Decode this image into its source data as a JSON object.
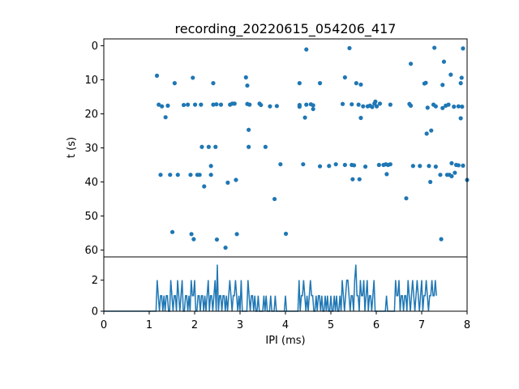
{
  "figure": {
    "title": "recording_20220615_054206_417"
  },
  "chart_data": [
    {
      "type": "scatter",
      "xlabel": "",
      "ylabel": "t (s)",
      "xlim": [
        0,
        8
      ],
      "ylim": [
        62,
        -2
      ],
      "y_inverted": true,
      "yticks": [
        0,
        10,
        20,
        30,
        40,
        50,
        60
      ],
      "color": "#1f77b4",
      "points": [
        [
          1.17,
          8.8
        ],
        [
          1.21,
          17.3
        ],
        [
          1.28,
          17.8
        ],
        [
          1.25,
          37.9
        ],
        [
          1.36,
          21.0
        ],
        [
          1.41,
          17.6
        ],
        [
          1.46,
          37.9
        ],
        [
          1.51,
          54.7
        ],
        [
          1.56,
          11.0
        ],
        [
          1.63,
          37.9
        ],
        [
          1.76,
          17.4
        ],
        [
          1.85,
          17.3
        ],
        [
          1.91,
          37.9
        ],
        [
          1.93,
          55.3
        ],
        [
          1.96,
          9.4
        ],
        [
          1.98,
          56.8
        ],
        [
          2.01,
          17.3
        ],
        [
          2.06,
          37.9
        ],
        [
          2.11,
          37.9
        ],
        [
          2.14,
          17.3
        ],
        [
          2.16,
          29.7
        ],
        [
          2.21,
          41.3
        ],
        [
          2.31,
          29.7
        ],
        [
          2.36,
          35.3
        ],
        [
          2.36,
          37.9
        ],
        [
          2.41,
          11.0
        ],
        [
          2.41,
          17.3
        ],
        [
          2.46,
          29.7
        ],
        [
          2.48,
          17.2
        ],
        [
          2.49,
          56.9
        ],
        [
          2.58,
          17.3
        ],
        [
          2.68,
          59.3
        ],
        [
          2.73,
          40.2
        ],
        [
          2.78,
          17.3
        ],
        [
          2.83,
          17.0
        ],
        [
          2.88,
          17.0
        ],
        [
          2.91,
          39.4
        ],
        [
          2.93,
          55.3
        ],
        [
          3.13,
          9.3
        ],
        [
          3.16,
          11.7
        ],
        [
          3.16,
          17.1
        ],
        [
          3.19,
          24.7
        ],
        [
          3.21,
          17.3
        ],
        [
          3.19,
          29.7
        ],
        [
          3.43,
          17.0
        ],
        [
          3.46,
          17.4
        ],
        [
          3.56,
          29.7
        ],
        [
          3.66,
          17.8
        ],
        [
          3.76,
          45.0
        ],
        [
          3.81,
          17.7
        ],
        [
          3.89,
          34.8
        ],
        [
          4.01,
          55.2
        ],
        [
          4.31,
          11.0
        ],
        [
          4.31,
          17.9
        ],
        [
          4.31,
          17.4
        ],
        [
          4.39,
          34.8
        ],
        [
          4.46,
          1.1
        ],
        [
          4.43,
          21.1
        ],
        [
          4.46,
          17.3
        ],
        [
          4.56,
          17.2
        ],
        [
          4.61,
          18.6
        ],
        [
          4.61,
          17.5
        ],
        [
          4.76,
          11.0
        ],
        [
          4.76,
          35.4
        ],
        [
          4.96,
          35.3
        ],
        [
          5.11,
          34.8
        ],
        [
          5.31,
          9.3
        ],
        [
          5.26,
          17.1
        ],
        [
          5.31,
          35.0
        ],
        [
          5.41,
          0.7
        ],
        [
          5.46,
          17.2
        ],
        [
          5.46,
          35.0
        ],
        [
          5.51,
          35.1
        ],
        [
          5.48,
          39.2
        ],
        [
          5.56,
          11.0
        ],
        [
          5.61,
          17.3
        ],
        [
          5.63,
          39.2
        ],
        [
          5.66,
          11.4
        ],
        [
          5.66,
          21.2
        ],
        [
          5.71,
          17.8
        ],
        [
          5.76,
          35.5
        ],
        [
          5.81,
          17.8
        ],
        [
          5.86,
          17.6
        ],
        [
          5.91,
          18.0
        ],
        [
          5.96,
          17.0
        ],
        [
          5.98,
          16.4
        ],
        [
          6.01,
          17.8
        ],
        [
          6.06,
          35.0
        ],
        [
          6.08,
          17.0
        ],
        [
          6.16,
          35.0
        ],
        [
          6.21,
          34.8
        ],
        [
          6.26,
          35.0
        ],
        [
          6.23,
          37.7
        ],
        [
          6.31,
          17.3
        ],
        [
          6.31,
          34.8
        ],
        [
          6.66,
          44.8
        ],
        [
          6.73,
          17.1
        ],
        [
          6.76,
          5.3
        ],
        [
          6.76,
          17.6
        ],
        [
          6.81,
          35.3
        ],
        [
          6.96,
          35.3
        ],
        [
          7.06,
          11.1
        ],
        [
          7.09,
          10.9
        ],
        [
          7.11,
          25.8
        ],
        [
          7.13,
          18.2
        ],
        [
          7.16,
          35.3
        ],
        [
          7.19,
          40.0
        ],
        [
          7.21,
          24.9
        ],
        [
          7.26,
          17.3
        ],
        [
          7.31,
          17.8
        ],
        [
          7.31,
          35.5
        ],
        [
          7.28,
          0.6
        ],
        [
          7.41,
          37.9
        ],
        [
          7.43,
          56.8
        ],
        [
          7.46,
          11.5
        ],
        [
          7.46,
          18.3
        ],
        [
          7.49,
          4.7
        ],
        [
          7.53,
          17.6
        ],
        [
          7.56,
          37.9
        ],
        [
          7.59,
          17.3
        ],
        [
          7.61,
          37.9
        ],
        [
          7.66,
          34.5
        ],
        [
          7.64,
          8.5
        ],
        [
          7.66,
          38.3
        ],
        [
          7.71,
          17.9
        ],
        [
          7.73,
          37.3
        ],
        [
          7.76,
          35.0
        ],
        [
          7.81,
          17.8
        ],
        [
          7.81,
          35.1
        ],
        [
          7.86,
          11.0
        ],
        [
          7.86,
          21.3
        ],
        [
          7.88,
          9.4
        ],
        [
          7.89,
          17.9
        ],
        [
          7.91,
          35.2
        ],
        [
          7.91,
          0.8
        ],
        [
          8.0,
          39.4
        ]
      ]
    },
    {
      "type": "line",
      "xlabel": "IPI (ms)",
      "ylabel": "",
      "xlim": [
        0,
        8
      ],
      "ylim": [
        0,
        3.5
      ],
      "xticks": [
        0,
        1,
        2,
        3,
        4,
        5,
        6,
        7,
        8
      ],
      "yticks": [
        0,
        2
      ],
      "color": "#1f77b4",
      "series": [
        {
          "bin_start": 0,
          "bin_width": 0.025,
          "values": [
            0,
            0,
            0,
            0,
            0,
            0,
            0,
            0,
            0,
            0,
            0,
            0,
            0,
            0,
            0,
            0,
            0,
            0,
            0,
            0,
            0,
            0,
            0,
            0,
            0,
            0,
            0,
            0,
            0,
            0,
            0,
            0,
            0,
            0,
            0,
            0,
            0,
            0,
            0,
            0,
            0,
            0,
            0,
            0,
            0,
            0,
            0,
            2,
            1,
            0,
            1,
            1,
            0,
            1,
            0,
            1,
            1,
            0,
            0,
            2,
            1,
            0,
            1,
            1,
            0,
            2,
            1,
            0,
            1,
            2,
            0,
            0,
            1,
            1,
            0,
            1,
            0,
            2,
            1,
            1,
            2,
            0,
            0,
            1,
            1,
            0,
            1,
            1,
            0,
            1,
            0,
            1,
            2,
            0,
            1,
            1,
            0,
            1,
            2,
            0,
            3,
            0,
            1,
            1,
            0,
            1,
            1,
            0,
            1,
            0,
            1,
            2,
            1,
            0,
            1,
            1,
            2,
            1,
            0,
            1,
            0,
            2,
            0,
            0,
            0,
            0,
            0,
            2,
            1,
            0,
            1,
            1,
            0,
            1,
            0,
            0,
            1,
            0,
            0,
            0,
            0,
            1,
            0,
            1,
            0,
            0,
            0,
            1,
            0,
            0,
            0,
            1,
            0,
            0,
            0,
            0,
            0,
            0,
            0,
            0,
            1,
            0,
            0,
            0,
            0,
            0,
            0,
            0,
            0,
            0,
            0,
            0,
            2,
            0,
            1,
            1,
            2,
            1,
            0,
            1,
            0,
            1,
            2,
            1,
            1,
            0,
            0,
            1,
            0,
            1,
            1,
            0,
            1,
            0,
            0,
            1,
            0,
            1,
            0,
            0,
            1,
            0,
            0,
            1,
            0,
            1,
            0,
            0,
            1,
            0,
            2,
            1,
            0,
            1,
            2,
            2,
            1,
            0,
            1,
            1,
            0,
            2,
            3,
            1,
            1,
            0,
            2,
            1,
            1,
            2,
            0,
            1,
            2,
            0,
            1,
            1,
            0,
            1,
            2,
            0,
            0,
            0,
            0,
            0,
            0,
            0,
            0,
            0,
            0,
            1,
            0,
            0,
            0,
            0,
            0,
            0,
            0,
            2,
            1,
            1,
            2,
            0,
            1,
            1,
            0,
            1,
            1,
            0,
            2,
            1,
            0,
            1,
            2,
            1,
            0,
            1,
            2,
            1,
            0,
            1,
            2,
            0,
            1,
            1,
            2,
            1,
            0,
            1,
            1,
            2,
            1,
            1,
            2,
            1
          ]
        }
      ]
    }
  ]
}
